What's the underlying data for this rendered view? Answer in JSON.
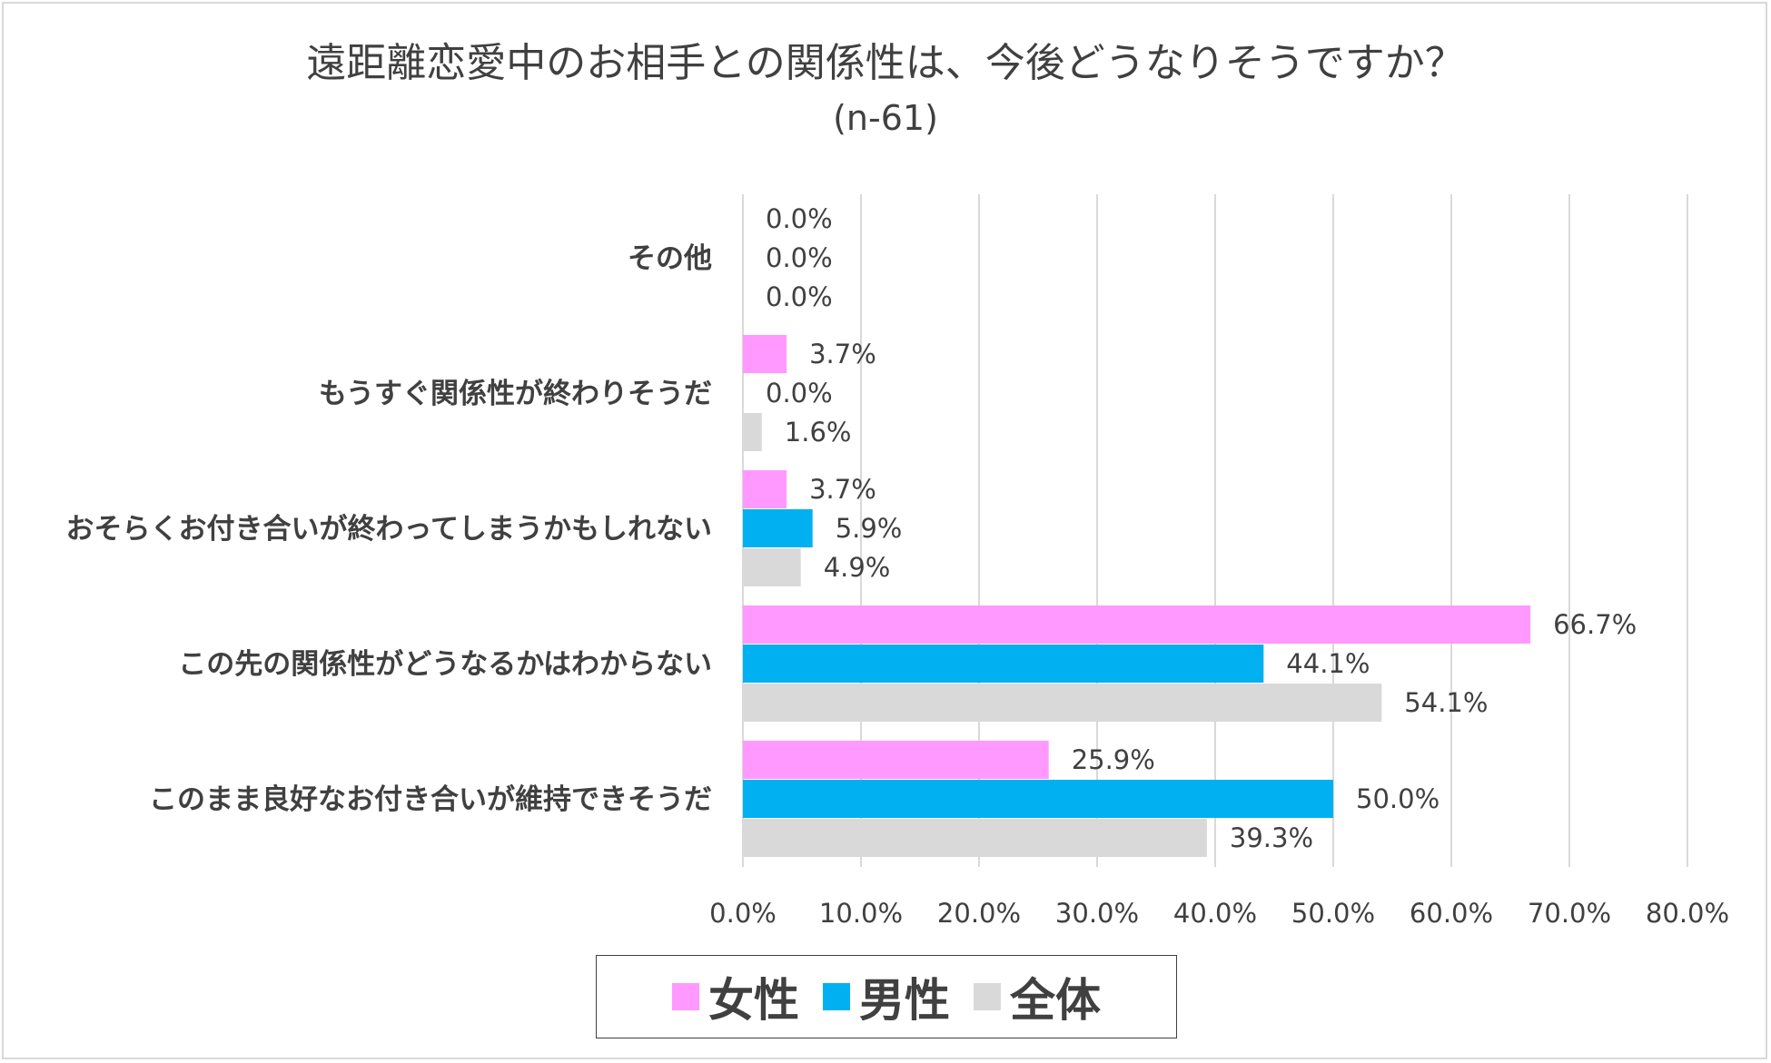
{
  "chart_data": {
    "type": "bar",
    "orientation": "horizontal",
    "title": "遠距離恋愛中のお相手との関係性は、今後どうなりそうですか？",
    "subtitle": "(n-61)",
    "categories": [
      "その他",
      "もうすぐ関係性が終わりそうだ",
      "おそらくお付き合いが終わってしまうかもしれない",
      "この先の関係性がどうなるかはわからない",
      "このまま良好なお付き合いが維持できそうだ"
    ],
    "series": [
      {
        "name": "女性",
        "color": "#ff99ff",
        "values": [
          0.0,
          3.7,
          3.7,
          66.7,
          25.9
        ],
        "labels": [
          "0.0%",
          "3.7%",
          "3.7%",
          "66.7%",
          "25.9%"
        ]
      },
      {
        "name": "男性",
        "color": "#00b0f0",
        "values": [
          0.0,
          0.0,
          5.9,
          44.1,
          50.0
        ],
        "labels": [
          "0.0%",
          "0.0%",
          "5.9%",
          "44.1%",
          "50.0%"
        ]
      },
      {
        "name": "全体",
        "color": "#d9d9d9",
        "values": [
          0.0,
          1.6,
          4.9,
          54.1,
          39.3
        ],
        "labels": [
          "0.0%",
          "1.6%",
          "4.9%",
          "54.1%",
          "39.3%"
        ]
      }
    ],
    "xlim": [
      0,
      80
    ],
    "x_ticks": [
      "0.0%",
      "10.0%",
      "20.0%",
      "30.0%",
      "40.0%",
      "50.0%",
      "60.0%",
      "70.0%",
      "80.0%"
    ],
    "grid": true,
    "legend_position": "bottom"
  }
}
